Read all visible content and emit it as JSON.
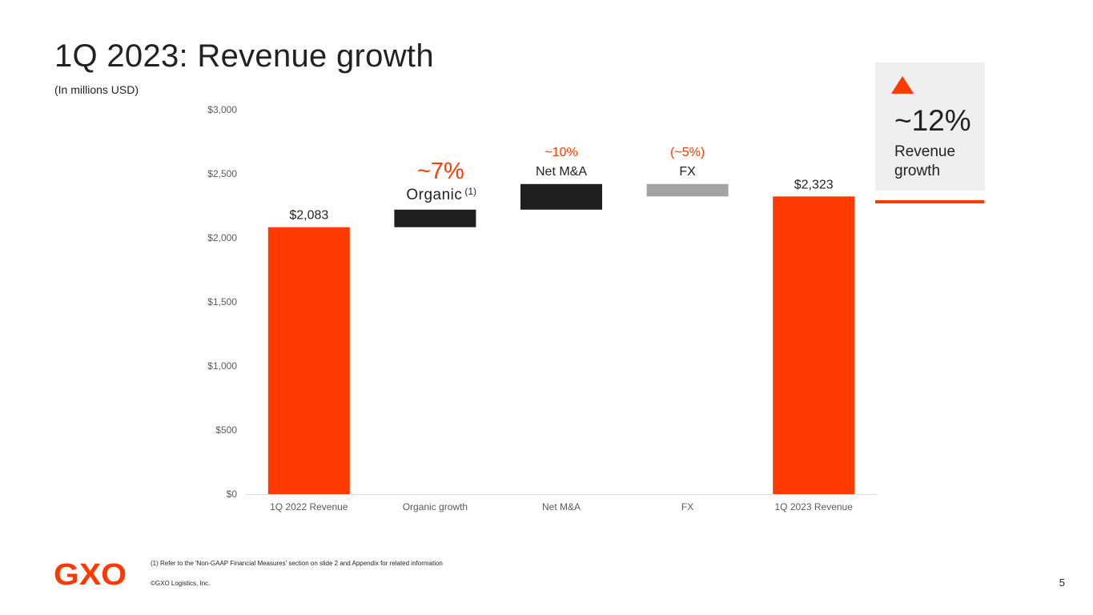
{
  "slide": {
    "title": "1Q 2023: Revenue growth",
    "subtitle": "(In millions USD)",
    "footnote": "(1) Refer to the 'Non-GAAP Financial Measures' section on slide 2 and Appendix for related information",
    "copyright": "©GXO Logistics, Inc.",
    "page_number": "5",
    "logo_text": "GXO"
  },
  "kpi": {
    "value": "~12%",
    "label": "Revenue growth",
    "direction": "up"
  },
  "colors": {
    "accent": "#ff3a00",
    "dark_bar": "#1e1e1e",
    "grey_bar": "#a3a3a3",
    "axis_text": "#595959",
    "kpi_background": "#efefef"
  },
  "chart_data": {
    "type": "waterfall",
    "categories": [
      "1Q 2022 Revenue",
      "Organic growth",
      "Net M&A",
      "FX",
      "1Q 2023 Revenue"
    ],
    "bars": [
      {
        "category": "1Q 2022 Revenue",
        "kind": "total",
        "start": 0,
        "end": 2083,
        "label": "$2,083",
        "color": "#ff3a00"
      },
      {
        "category": "Organic growth",
        "kind": "increase",
        "start": 2083,
        "end": 2220,
        "color": "#1e1e1e",
        "pct": "~7%",
        "name": "Organic",
        "sup": "(1)"
      },
      {
        "category": "Net M&A",
        "kind": "increase",
        "start": 2220,
        "end": 2420,
        "color": "#1e1e1e",
        "pct": "~10%",
        "name": "Net M&A"
      },
      {
        "category": "FX",
        "kind": "decrease",
        "start": 2420,
        "end": 2323,
        "color": "#a3a3a3",
        "pct": "(~5%)",
        "name": "FX"
      },
      {
        "category": "1Q 2023 Revenue",
        "kind": "total",
        "start": 0,
        "end": 2323,
        "label": "$2,323",
        "color": "#ff3a00"
      }
    ],
    "yticks": [
      0,
      500,
      1000,
      1500,
      2000,
      2500,
      3000
    ],
    "ytick_labels": [
      "$0",
      "$500",
      "$1,000",
      "$1,500",
      "$2,000",
      "$2,500",
      "$3,000"
    ],
    "ylim": [
      0,
      3000
    ],
    "grid": false,
    "xlabel": "",
    "ylabel": ""
  }
}
